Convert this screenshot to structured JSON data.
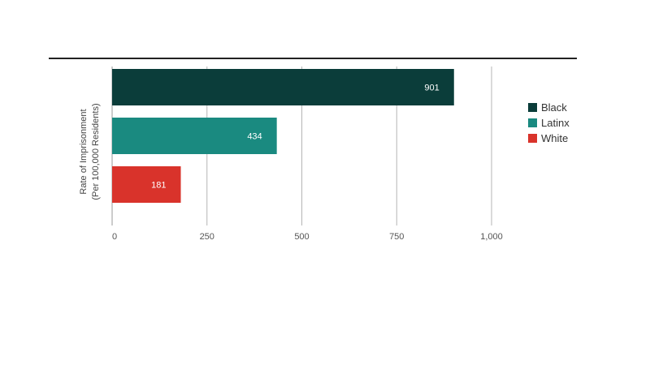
{
  "chart_data": {
    "type": "bar",
    "orientation": "horizontal",
    "categories": [
      "Black",
      "Latinx",
      "White"
    ],
    "values": [
      901,
      434,
      181
    ],
    "value_labels": [
      "901",
      "434",
      "181"
    ],
    "colors": [
      "#0b3d3a",
      "#1a8a80",
      "#d9332b"
    ],
    "ylabel_lines": [
      "Rate of Imprisonment",
      "(Per 100,000 Residents)"
    ],
    "xlim": [
      0,
      1000
    ],
    "xticks": [
      0,
      250,
      500,
      750,
      1000
    ],
    "xtick_labels": [
      "0",
      "250",
      "500",
      "750",
      "1,000"
    ],
    "grid": true,
    "legend_position": "right",
    "legend": [
      {
        "label": "Black",
        "color": "#0b3d3a"
      },
      {
        "label": "Latinx",
        "color": "#1a8a80"
      },
      {
        "label": "White",
        "color": "#d9332b"
      }
    ]
  }
}
